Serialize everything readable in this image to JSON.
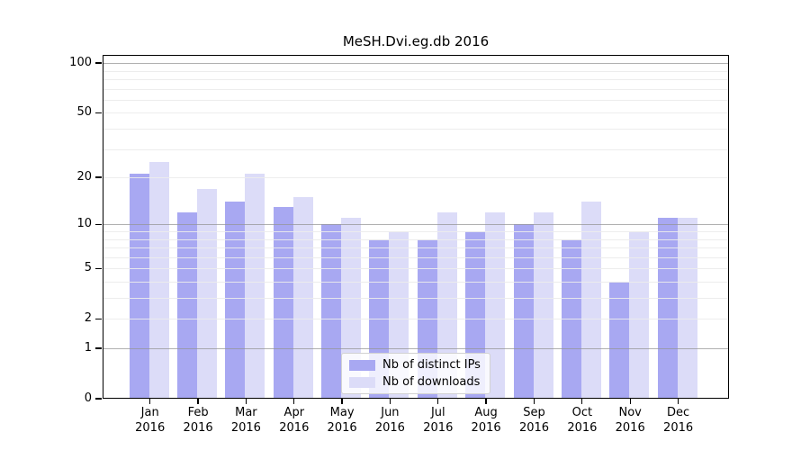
{
  "title": "MeSH.Dvi.eg.db 2016",
  "colors": {
    "bar_distinct_ips": "#a8a8f2",
    "bar_downloads": "#dcdcf8",
    "grid_major": "rgba(150,150,150,0.75)",
    "grid_minor": "rgba(235,235,235,0.92)",
    "axis": "#000000",
    "background": "#ffffff"
  },
  "legend": {
    "items": [
      {
        "label": "Nb of distinct IPs",
        "color": "#a8a8f2"
      },
      {
        "label": "Nb of downloads",
        "color": "#dcdcf8"
      }
    ]
  },
  "chart_data": {
    "type": "bar",
    "title": "MeSH.Dvi.eg.db 2016",
    "categories": [
      "Jan 2016",
      "Feb 2016",
      "Mar 2016",
      "Apr 2016",
      "May 2016",
      "Jun 2016",
      "Jul 2016",
      "Aug 2016",
      "Sep 2016",
      "Oct 2016",
      "Nov 2016",
      "Dec 2016"
    ],
    "series": [
      {
        "name": "Nb of distinct IPs",
        "values": [
          21,
          12,
          14,
          13,
          10,
          8,
          8,
          9,
          10,
          8,
          4,
          11
        ]
      },
      {
        "name": "Nb of downloads",
        "values": [
          25,
          17,
          21,
          15,
          11,
          9,
          12,
          12,
          12,
          14,
          9,
          11
        ]
      }
    ],
    "xlabel": "",
    "ylabel": "",
    "yscale": "log1p",
    "yticks": [
      0,
      1,
      2,
      5,
      10,
      20,
      50,
      100
    ],
    "ytick_major_gridlines": [
      1,
      10,
      100
    ],
    "ytick_minor_gridlines": [
      2,
      3,
      4,
      5,
      6,
      7,
      8,
      9,
      20,
      30,
      40,
      50,
      60,
      70,
      80,
      90
    ],
    "ylim": [
      0,
      112
    ],
    "grid": "horizontal",
    "legend_position": "bottom-center-inside"
  }
}
